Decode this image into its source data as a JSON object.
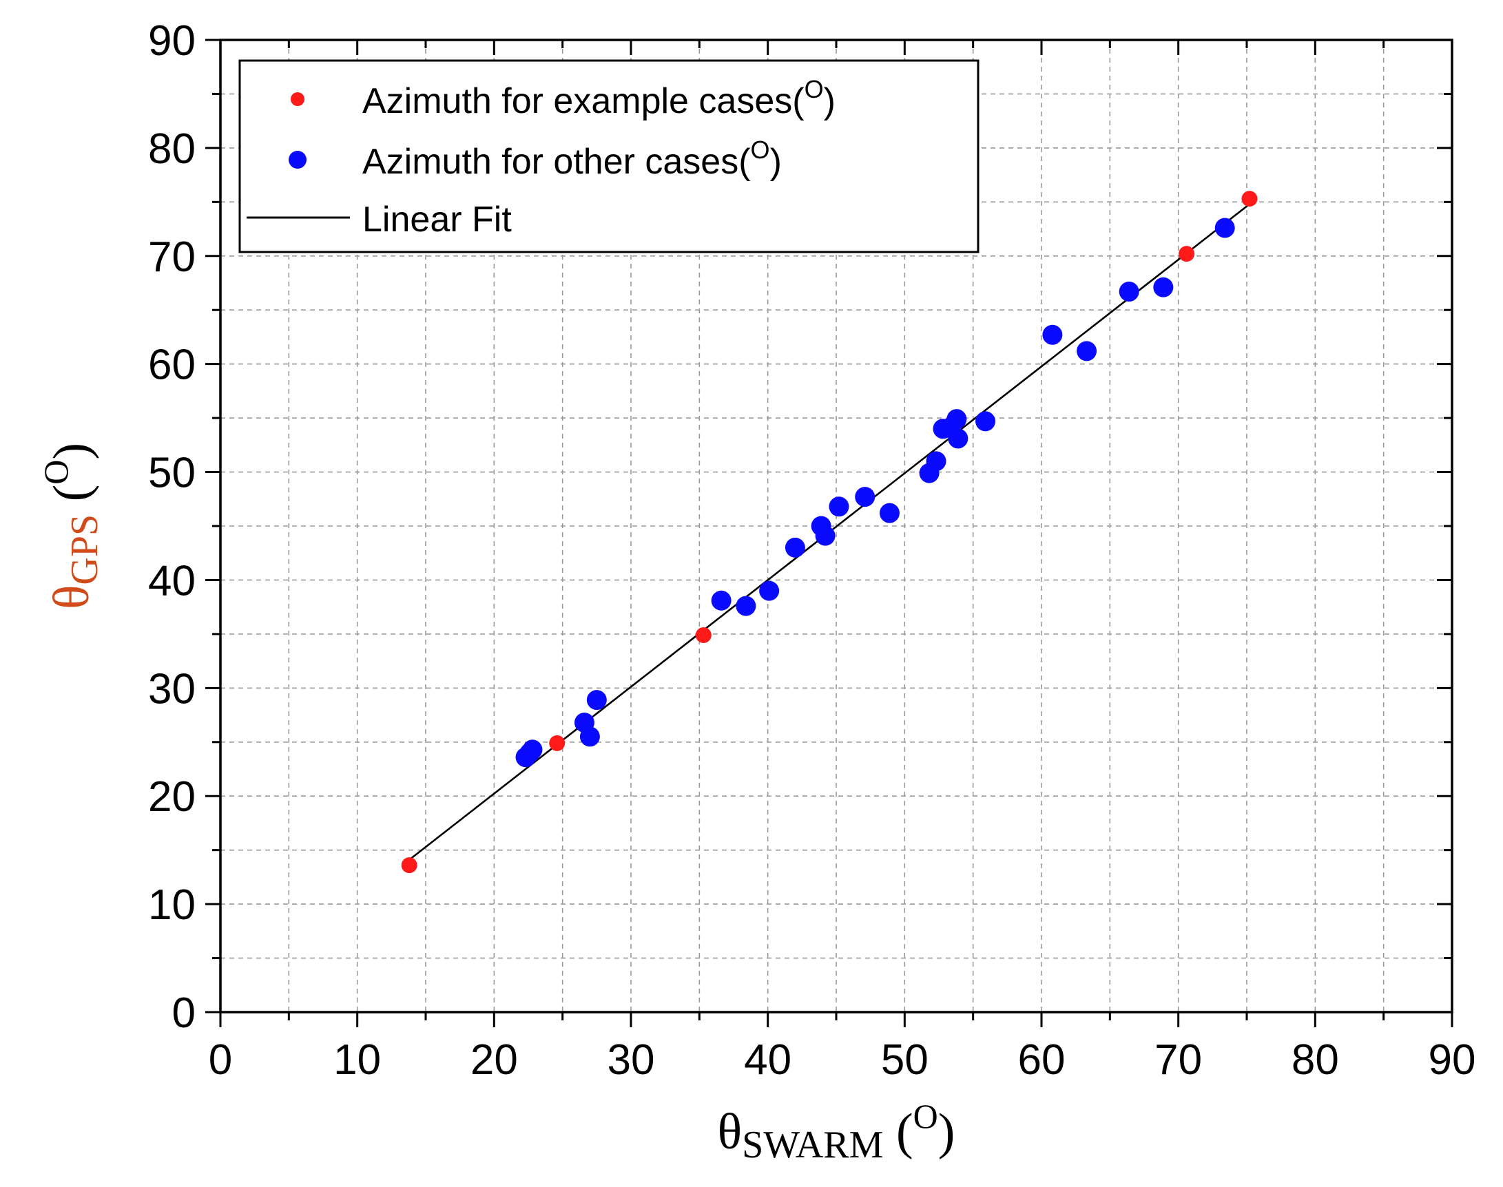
{
  "chart_data": {
    "type": "scatter",
    "x_axis": {
      "symbol": "θ",
      "subscript": "SWARM",
      "unit_prefix": " (",
      "unit_superscript": "O",
      "unit_suffix": ")",
      "range": [
        0,
        90
      ],
      "major_ticks": [
        0,
        10,
        20,
        30,
        40,
        50,
        60,
        70,
        80,
        90
      ],
      "tick_labels": [
        "0",
        "10",
        "20",
        "30",
        "40",
        "50",
        "60",
        "70",
        "80",
        "90"
      ],
      "minor_step": 5
    },
    "y_axis": {
      "symbol": "θ",
      "subscript": "GPS",
      "unit_prefix": " (",
      "unit_superscript": "O",
      "unit_suffix": ")",
      "range": [
        0,
        90
      ],
      "major_ticks": [
        0,
        10,
        20,
        30,
        40,
        50,
        60,
        70,
        80,
        90
      ],
      "tick_labels": [
        "0",
        "10",
        "20",
        "30",
        "40",
        "50",
        "60",
        "70",
        "80",
        "90"
      ],
      "minor_step": 5
    },
    "grid": true,
    "legend_position": "top-left",
    "legend": [
      {
        "key": "example",
        "marker": "point",
        "text": "Azimuth for example cases(",
        "superscript": "O",
        "suffix": ")"
      },
      {
        "key": "other",
        "marker": "point",
        "text": "Azimuth for other cases(",
        "superscript": "O",
        "suffix": ")"
      },
      {
        "key": "fit",
        "marker": "line",
        "text": "Linear Fit",
        "superscript": "",
        "suffix": ""
      }
    ],
    "series": [
      {
        "key": "example",
        "name": "Azimuth for example cases(O)",
        "color": "#ff1a1a",
        "size": "small",
        "points": [
          {
            "x": 13.8,
            "y": 13.6
          },
          {
            "x": 24.6,
            "y": 24.9
          },
          {
            "x": 35.3,
            "y": 34.9
          },
          {
            "x": 70.6,
            "y": 70.2
          },
          {
            "x": 75.2,
            "y": 75.3
          }
        ]
      },
      {
        "key": "other",
        "name": "Azimuth for other cases(O)",
        "color": "#0a0aff",
        "size": "large",
        "points": [
          {
            "x": 22.3,
            "y": 23.6
          },
          {
            "x": 22.6,
            "y": 24.0
          },
          {
            "x": 22.8,
            "y": 24.3
          },
          {
            "x": 26.6,
            "y": 26.8
          },
          {
            "x": 27.0,
            "y": 25.5
          },
          {
            "x": 27.5,
            "y": 28.9
          },
          {
            "x": 36.6,
            "y": 38.1
          },
          {
            "x": 38.4,
            "y": 37.6
          },
          {
            "x": 40.1,
            "y": 39.0
          },
          {
            "x": 42.0,
            "y": 43.0
          },
          {
            "x": 43.9,
            "y": 45.0
          },
          {
            "x": 44.2,
            "y": 44.1
          },
          {
            "x": 45.2,
            "y": 46.8
          },
          {
            "x": 47.1,
            "y": 47.7
          },
          {
            "x": 48.9,
            "y": 46.2
          },
          {
            "x": 51.8,
            "y": 49.9
          },
          {
            "x": 52.3,
            "y": 51.0
          },
          {
            "x": 52.8,
            "y": 54.0
          },
          {
            "x": 53.3,
            "y": 54.1
          },
          {
            "x": 53.8,
            "y": 54.9
          },
          {
            "x": 53.9,
            "y": 53.1
          },
          {
            "x": 55.9,
            "y": 54.7
          },
          {
            "x": 60.8,
            "y": 62.7
          },
          {
            "x": 63.3,
            "y": 61.2
          },
          {
            "x": 66.4,
            "y": 66.7
          },
          {
            "x": 68.9,
            "y": 67.1
          },
          {
            "x": 73.4,
            "y": 72.6
          }
        ]
      }
    ],
    "linear_fit": {
      "name": "Linear Fit",
      "color": "#000000",
      "x": [
        13.8,
        75.2
      ],
      "y": [
        14.1,
        74.8
      ]
    }
  }
}
